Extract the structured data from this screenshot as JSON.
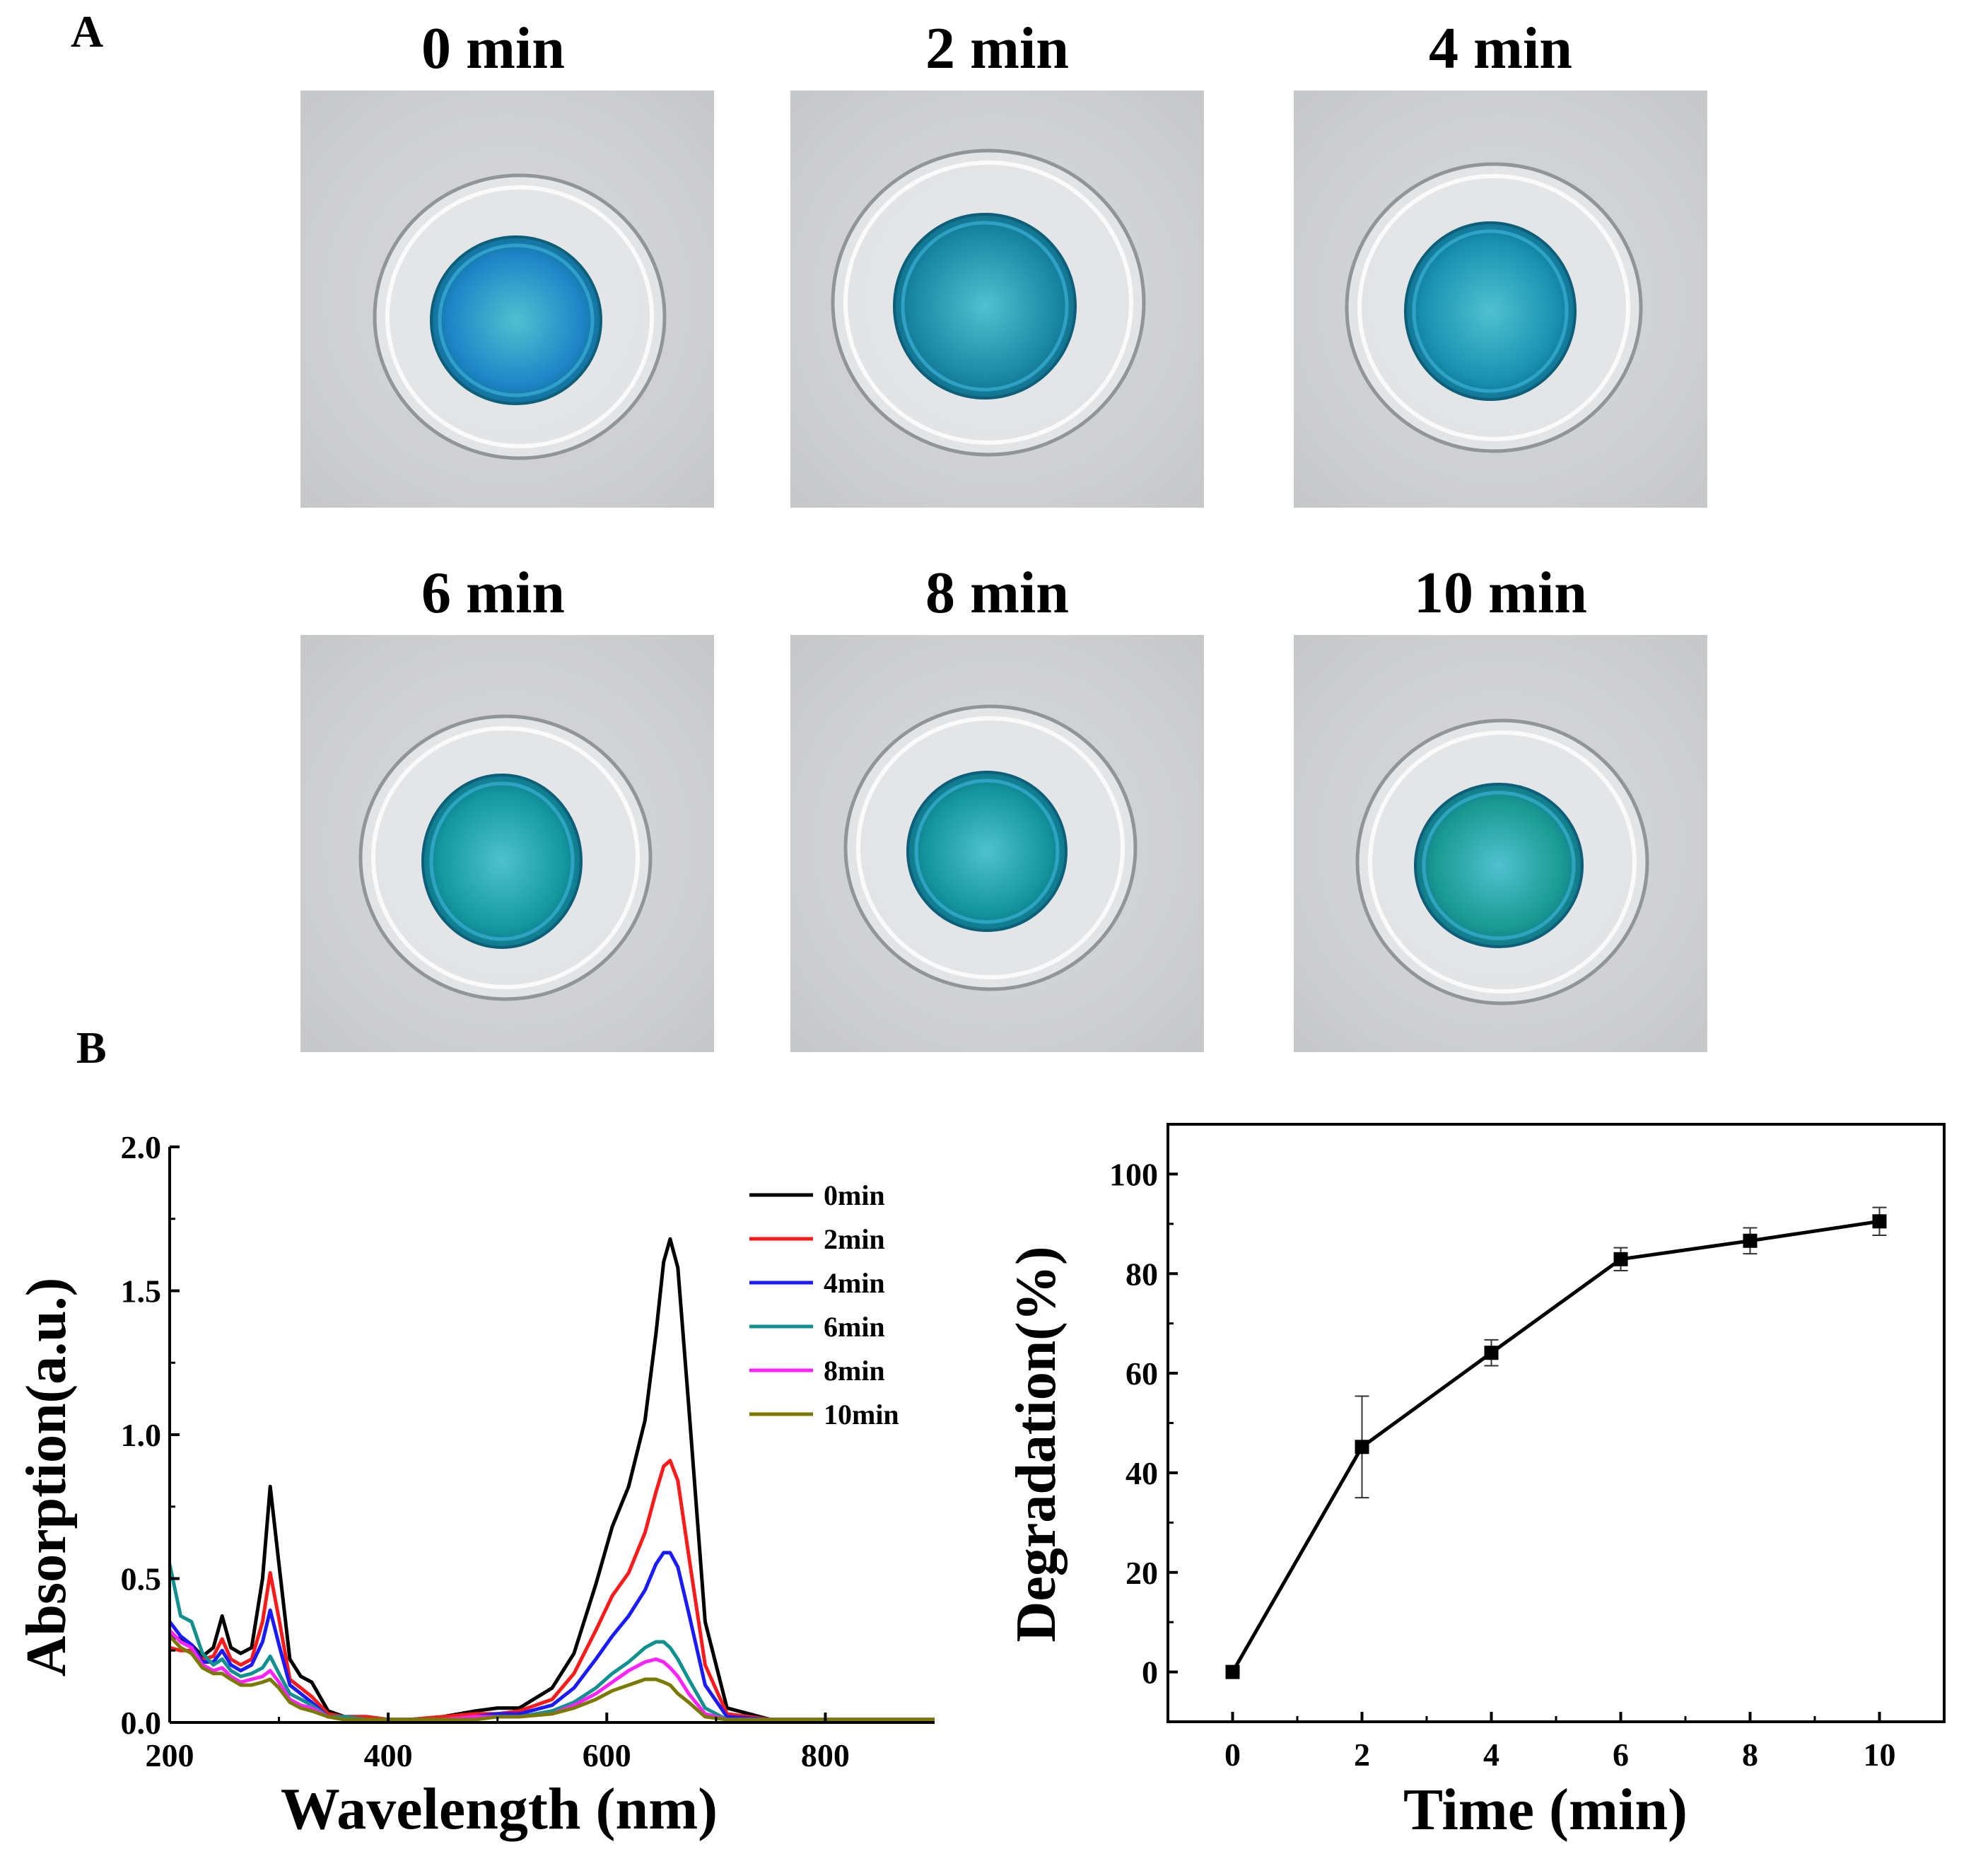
{
  "panels": {
    "a_label": "A",
    "b_label": "B"
  },
  "photos": [
    {
      "label": "0 min",
      "dye_color": "#1f86c8"
    },
    {
      "label": "2 min",
      "dye_color": "#1b8aa6"
    },
    {
      "label": "4 min",
      "dye_color": "#1a92b2"
    },
    {
      "label": "6 min",
      "dye_color": "#149a9f"
    },
    {
      "label": "8 min",
      "dye_color": "#14969c"
    },
    {
      "label": "10 min",
      "dye_color": "#1a9a92"
    }
  ],
  "chart_data": [
    {
      "type": "line",
      "title": "",
      "xlabel": "Wavelength (nm)",
      "ylabel": "Absorption(a.u.)",
      "xlim": [
        200,
        900
      ],
      "ylim": [
        0,
        2.0
      ],
      "xticks": [
        200,
        400,
        600,
        800
      ],
      "xtick_labels": [
        "200",
        "400",
        "600",
        "800"
      ],
      "yticks": [
        0,
        0.5,
        1.0,
        1.5,
        2.0
      ],
      "ytick_labels": [
        "0.0",
        "0.5",
        "1.0",
        "1.5",
        "2.0"
      ],
      "legend_position": "top-right",
      "x": [
        200,
        210,
        220,
        230,
        240,
        248,
        256,
        265,
        275,
        285,
        292,
        300,
        310,
        320,
        330,
        345,
        360,
        380,
        400,
        420,
        450,
        480,
        500,
        520,
        550,
        570,
        590,
        605,
        620,
        635,
        645,
        652,
        658,
        665,
        675,
        690,
        710,
        750,
        800,
        900
      ],
      "series": [
        {
          "name": "0min",
          "color": "#000000",
          "values": [
            0.3,
            0.29,
            0.27,
            0.23,
            0.26,
            0.37,
            0.26,
            0.24,
            0.26,
            0.5,
            0.82,
            0.55,
            0.22,
            0.16,
            0.14,
            0.04,
            0.02,
            0.02,
            0.01,
            0.01,
            0.02,
            0.04,
            0.05,
            0.05,
            0.12,
            0.24,
            0.48,
            0.68,
            0.82,
            1.05,
            1.35,
            1.6,
            1.68,
            1.58,
            1.1,
            0.35,
            0.05,
            0.01,
            0.01,
            0.01
          ]
        },
        {
          "name": "2min",
          "color": "#ff1a1a",
          "values": [
            0.26,
            0.25,
            0.25,
            0.22,
            0.23,
            0.29,
            0.22,
            0.2,
            0.22,
            0.35,
            0.52,
            0.36,
            0.15,
            0.12,
            0.09,
            0.03,
            0.02,
            0.02,
            0.01,
            0.01,
            0.02,
            0.03,
            0.03,
            0.04,
            0.08,
            0.17,
            0.32,
            0.44,
            0.52,
            0.66,
            0.8,
            0.89,
            0.91,
            0.84,
            0.58,
            0.2,
            0.03,
            0.01,
            0.01,
            0.01
          ]
        },
        {
          "name": "4min",
          "color": "#1a1aff",
          "values": [
            0.35,
            0.3,
            0.27,
            0.21,
            0.21,
            0.25,
            0.2,
            0.18,
            0.2,
            0.28,
            0.39,
            0.27,
            0.13,
            0.1,
            0.07,
            0.02,
            0.02,
            0.01,
            0.01,
            0.01,
            0.01,
            0.02,
            0.03,
            0.03,
            0.06,
            0.12,
            0.22,
            0.3,
            0.37,
            0.46,
            0.55,
            0.59,
            0.59,
            0.54,
            0.38,
            0.13,
            0.02,
            0.01,
            0.01,
            0.01
          ]
        },
        {
          "name": "6min",
          "color": "#119090",
          "values": [
            0.55,
            0.37,
            0.35,
            0.24,
            0.2,
            0.22,
            0.18,
            0.16,
            0.17,
            0.19,
            0.23,
            0.17,
            0.1,
            0.08,
            0.06,
            0.02,
            0.02,
            0.01,
            0.01,
            0.01,
            0.01,
            0.02,
            0.02,
            0.02,
            0.04,
            0.07,
            0.12,
            0.17,
            0.21,
            0.26,
            0.28,
            0.28,
            0.26,
            0.22,
            0.15,
            0.05,
            0.01,
            0.01,
            0.01,
            0.01
          ]
        },
        {
          "name": "8min",
          "color": "#ff22ff",
          "values": [
            0.32,
            0.28,
            0.26,
            0.2,
            0.18,
            0.19,
            0.16,
            0.14,
            0.15,
            0.16,
            0.18,
            0.14,
            0.08,
            0.06,
            0.05,
            0.02,
            0.01,
            0.01,
            0.01,
            0.01,
            0.01,
            0.02,
            0.02,
            0.02,
            0.03,
            0.06,
            0.1,
            0.14,
            0.18,
            0.21,
            0.22,
            0.21,
            0.19,
            0.16,
            0.1,
            0.03,
            0.01,
            0.01,
            0.01,
            0.01
          ]
        },
        {
          "name": "10min",
          "color": "#7a7a00",
          "values": [
            0.3,
            0.26,
            0.24,
            0.19,
            0.17,
            0.17,
            0.15,
            0.13,
            0.13,
            0.14,
            0.15,
            0.12,
            0.07,
            0.05,
            0.04,
            0.02,
            0.01,
            0.01,
            0.01,
            0.01,
            0.01,
            0.01,
            0.02,
            0.02,
            0.03,
            0.05,
            0.08,
            0.11,
            0.13,
            0.15,
            0.15,
            0.14,
            0.13,
            0.1,
            0.07,
            0.02,
            0.01,
            0.01,
            0.01,
            0.01
          ]
        }
      ]
    },
    {
      "type": "line",
      "title": "",
      "xlabel": "Time (min)",
      "ylabel": "Degradation(%)",
      "xlim": [
        -1,
        11
      ],
      "ylim": [
        -10,
        110
      ],
      "xticks": [
        0,
        2,
        4,
        6,
        8,
        10
      ],
      "xtick_labels": [
        "0",
        "2",
        "4",
        "6",
        "8",
        "10"
      ],
      "yticks": [
        0,
        20,
        40,
        60,
        80,
        100
      ],
      "ytick_labels": [
        "0",
        "20",
        "40",
        "60",
        "80",
        "100"
      ],
      "x": [
        0,
        2,
        4,
        6,
        8,
        10
      ],
      "series": [
        {
          "name": "Degradation",
          "color": "#000000",
          "values": [
            0,
            45.2,
            64.1,
            82.9,
            86.6,
            90.5
          ],
          "errors": [
            0,
            10.2,
            2.6,
            2.3,
            2.6,
            2.8
          ]
        }
      ]
    }
  ]
}
